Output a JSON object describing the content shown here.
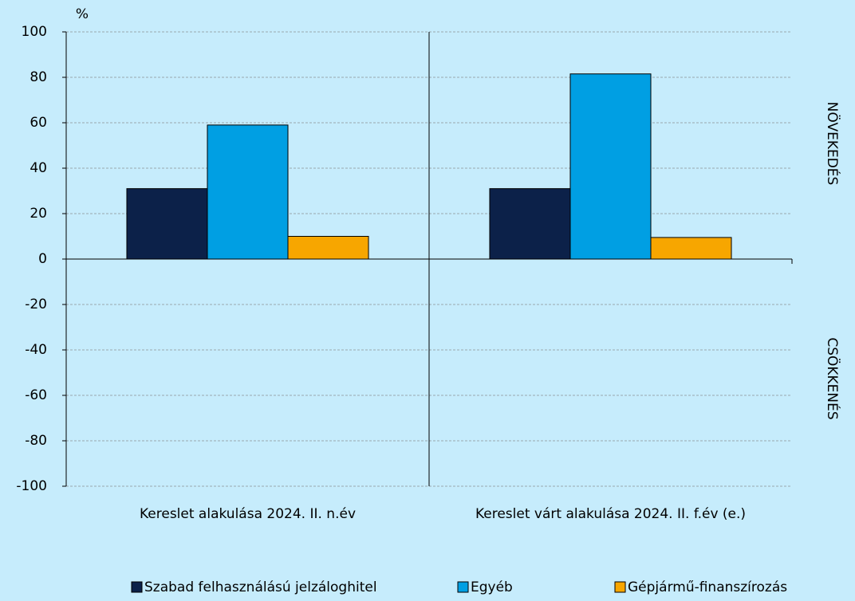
{
  "chart_data": {
    "type": "bar",
    "ylabel": "%",
    "categories": [
      "Kereslet alakulása 2024. II. n.év",
      "Kereslet várt alakulása 2024. II. f.év (e.)"
    ],
    "series": [
      {
        "name": "Szabad felhasználású jelzáloghitel",
        "color": "#0c2149",
        "values": [
          31,
          31
        ]
      },
      {
        "name": "Egyéb",
        "color": "#009fe3",
        "values": [
          59,
          81.5
        ]
      },
      {
        "name": "Gépjármű-finanszírozás",
        "color": "#f7a600",
        "values": [
          10,
          9.5
        ]
      }
    ],
    "ylim": [
      -100,
      100
    ],
    "yticks": [
      -100,
      -80,
      -60,
      -40,
      -20,
      0,
      20,
      40,
      60,
      80,
      100
    ],
    "grid": true,
    "annotations": [
      "NÖVEKEDÉS",
      "CSÖKKENÉS"
    ]
  }
}
